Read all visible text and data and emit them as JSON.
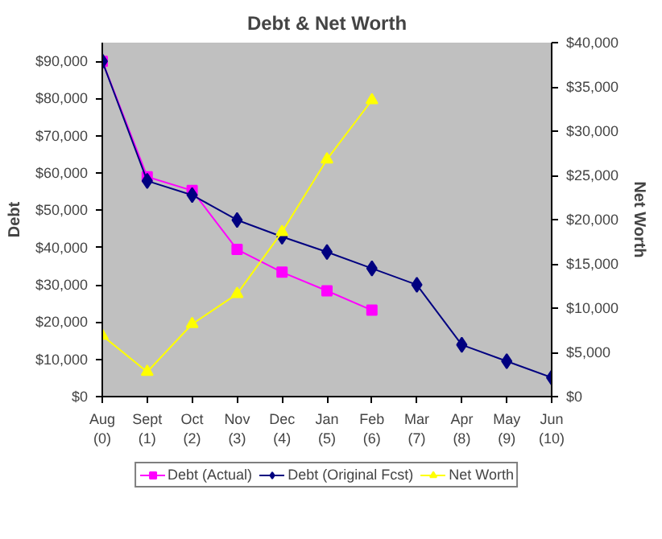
{
  "chart_data": {
    "type": "line",
    "title": "Debt & Net Worth",
    "ylabel": "Debt",
    "y2label": "Net Worth",
    "categories": [
      "Aug\n(0)",
      "Sept\n(1)",
      "Oct\n(2)",
      "Nov\n(3)",
      "Dec\n(4)",
      "Jan\n(5)",
      "Feb\n(6)",
      "Mar\n(7)",
      "Apr\n(8)",
      "May\n(9)",
      "Jun\n(10)"
    ],
    "series": [
      {
        "name": "Debt (Actual)",
        "color": "#ff00ff",
        "marker": "square",
        "values": [
          90000,
          59000,
          55300,
          39500,
          33400,
          28400,
          23200,
          null,
          null,
          null,
          null
        ]
      },
      {
        "name": "Debt (Original Fcst)",
        "color": "#000080",
        "marker": "diamond",
        "values": [
          90000,
          57900,
          54100,
          47400,
          42900,
          38800,
          34400,
          30000,
          13900,
          9500,
          5100
        ]
      },
      {
        "name": "Net Worth",
        "color": "#ffff00",
        "marker": "triangle",
        "axis": "y2",
        "values": [
          6900,
          2800,
          8200,
          11600,
          18600,
          26800,
          33500,
          null,
          null,
          null,
          null
        ]
      }
    ],
    "ylim": [
      0,
      95000
    ],
    "yticks": [
      {
        "value": 0,
        "label": "$0"
      },
      {
        "value": 10000,
        "label": "$10,000"
      },
      {
        "value": 20000,
        "label": "$20,000"
      },
      {
        "value": 30000,
        "label": "$30,000"
      },
      {
        "value": 40000,
        "label": "$40,000"
      },
      {
        "value": 50000,
        "label": "$50,000"
      },
      {
        "value": 60000,
        "label": "$60,000"
      },
      {
        "value": 70000,
        "label": "$70,000"
      },
      {
        "value": 80000,
        "label": "$80,000"
      },
      {
        "value": 90000,
        "label": "$90,000"
      }
    ],
    "y2lim": [
      0,
      40000
    ],
    "y2ticks": [
      {
        "value": 0,
        "label": "$0"
      },
      {
        "value": 5000,
        "label": "$5,000"
      },
      {
        "value": 10000,
        "label": "$10,000"
      },
      {
        "value": 15000,
        "label": "$15,000"
      },
      {
        "value": 20000,
        "label": "$20,000"
      },
      {
        "value": 25000,
        "label": "$25,000"
      },
      {
        "value": 30000,
        "label": "$30,000"
      },
      {
        "value": 35000,
        "label": "$35,000"
      },
      {
        "value": 40000,
        "label": "$40,000"
      }
    ],
    "grid": false,
    "legend": "bottom",
    "line_style": "solid"
  }
}
